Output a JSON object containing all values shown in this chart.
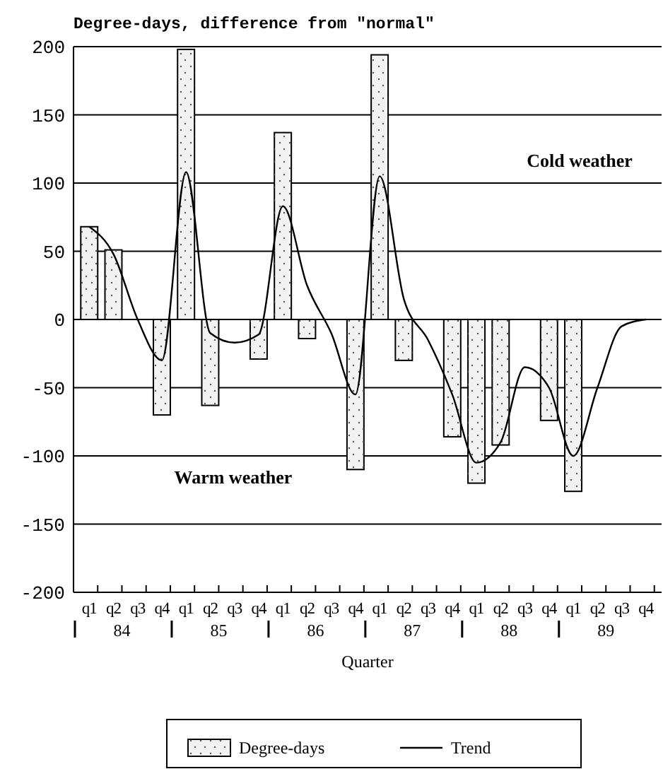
{
  "chart_data": {
    "type": "bar",
    "title": "Degree-days, difference from \"normal\"",
    "xlabel": "Quarter",
    "categories": [
      "q1",
      "q2",
      "q3",
      "q4",
      "q1",
      "q2",
      "q3",
      "q4",
      "q1",
      "q2",
      "q3",
      "q4",
      "q1",
      "q2",
      "q3",
      "q4",
      "q1",
      "q2",
      "q3",
      "q4",
      "q1",
      "q2",
      "q3",
      "q4"
    ],
    "series": [
      {
        "name": "Degree-days",
        "color": "#f2f2f2",
        "values": [
          68,
          51,
          null,
          -70,
          198,
          -63,
          null,
          -29,
          137,
          -14,
          null,
          -110,
          194,
          -30,
          null,
          -86,
          -120,
          -92,
          null,
          -74,
          -126,
          null,
          null,
          null
        ]
      },
      {
        "name": "Trend",
        "type": "line",
        "color": "#000000",
        "values": [
          68,
          48,
          0,
          -30,
          108,
          -10,
          -17,
          -11,
          83,
          25,
          -10,
          -55,
          105,
          15,
          -15,
          -55,
          -105,
          -90,
          -35,
          -50,
          -100,
          -50,
          -5,
          0
        ]
      }
    ],
    "annotations": [
      "Cold weather",
      "Warm weather",
      "84",
      "85",
      "86",
      "87",
      "88",
      "89"
    ],
    "ylim": [
      -200,
      200
    ],
    "yticks": [
      -200,
      -150,
      -100,
      -50,
      0,
      50,
      100,
      150,
      200
    ],
    "grid": "y",
    "legend": "bottom"
  }
}
